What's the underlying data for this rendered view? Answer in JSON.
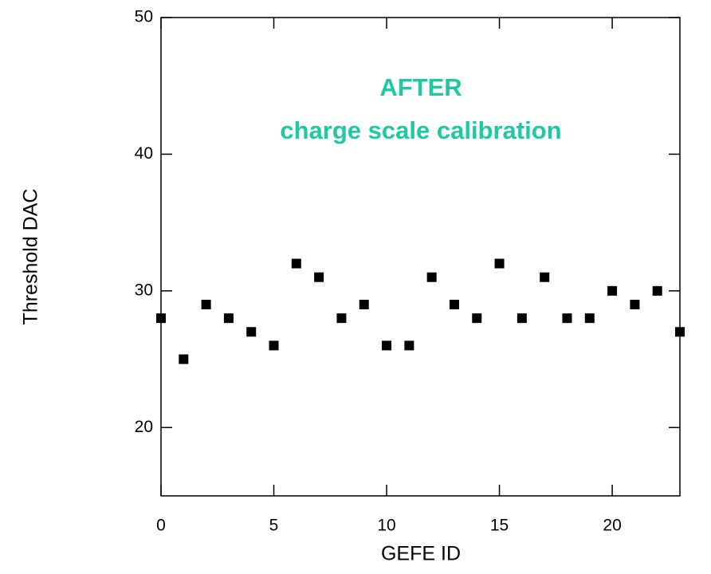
{
  "chart_data": {
    "type": "scatter",
    "x_label": "GEFE ID",
    "y_label": "Threshold DAC",
    "annotations": [
      "AFTER",
      "charge scale calibration"
    ],
    "annotation_color": "#1ec8a2",
    "x": [
      0,
      1,
      2,
      3,
      4,
      5,
      6,
      7,
      8,
      9,
      10,
      11,
      12,
      13,
      14,
      15,
      16,
      17,
      18,
      19,
      20,
      21,
      22,
      23
    ],
    "values": [
      28,
      25,
      29,
      28,
      27,
      26,
      32,
      31,
      28,
      29,
      26,
      26,
      31,
      29,
      28,
      32,
      28,
      31,
      28,
      28,
      30,
      29,
      30,
      27
    ],
    "color": "#000000",
    "xlim": [
      0,
      23
    ],
    "xticks": [
      0,
      5,
      10,
      15,
      20
    ],
    "ylim": [
      15,
      50
    ],
    "yticks": [
      20,
      30,
      40,
      50
    ]
  }
}
